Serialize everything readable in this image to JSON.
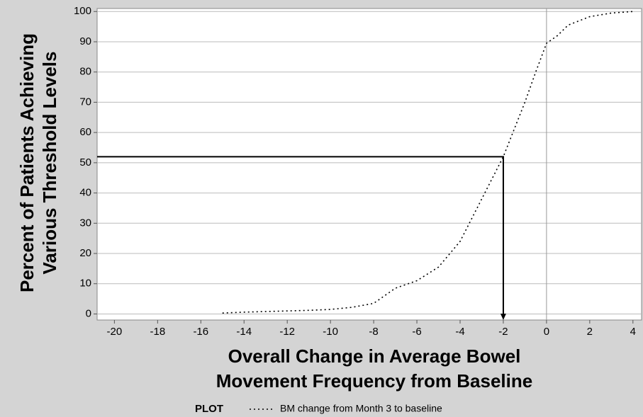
{
  "chart_data": {
    "type": "line",
    "y_label": [
      "Percent of Patients Achieving",
      "Various Threshold Levels"
    ],
    "x_label": [
      "Overall Change in Average Bowel",
      "Movement Frequency from Baseline"
    ],
    "legend_title": "PLOT",
    "x": [
      -15,
      -14,
      -13,
      -12,
      -11,
      -10,
      -9,
      -8,
      -7.5,
      -7,
      -6,
      -5,
      -4,
      -3,
      -2,
      -1,
      -0.5,
      0,
      0.5,
      1,
      2,
      3,
      4
    ],
    "series": [
      {
        "name": "BM change from Month 3 to baseline",
        "color": "#000000",
        "values": [
          0.3,
          0.6,
          0.8,
          1.0,
          1.2,
          1.5,
          2.2,
          3.5,
          6,
          8.5,
          11,
          15.5,
          24,
          38,
          52,
          70,
          80,
          89.5,
          92,
          95.5,
          98.3,
          99.5,
          100
        ]
      }
    ],
    "reference": {
      "x": -2,
      "y": 52
    },
    "xlim": [
      -20.8,
      4.4
    ],
    "ylim": [
      -2,
      101
    ],
    "xticks": [
      -20,
      -18,
      -16,
      -14,
      -12,
      -10,
      -8,
      -6,
      -4,
      -2,
      0,
      2,
      4
    ],
    "yticks": [
      0,
      10,
      20,
      30,
      40,
      50,
      60,
      70,
      80,
      90,
      100
    ],
    "grid": true,
    "zero_line": true
  }
}
